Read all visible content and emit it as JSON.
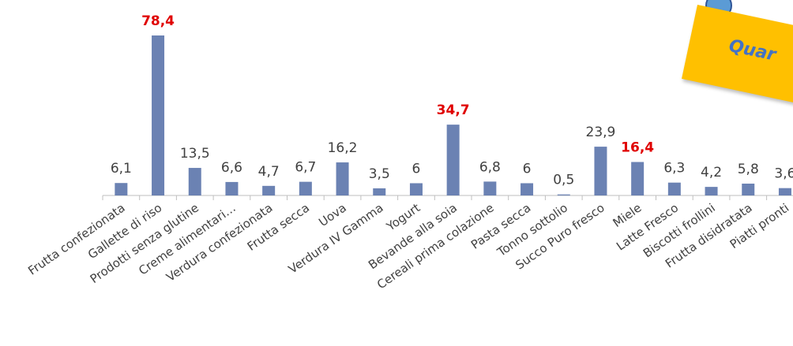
{
  "chart_data": {
    "type": "bar",
    "categories": [
      "Frutta confezionata",
      "Gallette di riso",
      "Prodotti senza glutine",
      "Creme alimentari…",
      "Verdura confezionata",
      "Frutta secca",
      "Uova",
      "Verdura IV Gamma",
      "Yogurt",
      "Bevande alla soia",
      "Cereali prima colazione",
      "Pasta secca",
      "Tonno sottolio",
      "Succo Puro fresco",
      "Miele",
      "Latte Fresco",
      "Biscotti frollini",
      "Frutta disidratata",
      "Piatti pronti"
    ],
    "values": [
      6.1,
      78.4,
      13.5,
      6.6,
      4.7,
      6.7,
      16.2,
      3.5,
      6,
      34.7,
      6.8,
      6,
      0.5,
      23.9,
      16.4,
      6.3,
      4.2,
      5.8,
      3.6
    ],
    "value_labels": [
      "6,1",
      "78,4",
      "13,5",
      "6,6",
      "4,7",
      "6,7",
      "16,2",
      "3,5",
      "6",
      "34,7",
      "6,8",
      "6",
      "0,5",
      "23,9",
      "16,4",
      "6,3",
      "4,2",
      "5,8",
      "3,6"
    ],
    "highlighted": [
      "Gallette di riso",
      "Bevande alla soia",
      "Miele"
    ],
    "ylim": [
      0,
      80
    ],
    "grid": false,
    "colors": {
      "bar": "#6b82b3",
      "highlight_label": "#e00000",
      "label": "#404040"
    }
  },
  "callout": {
    "text": "Quar",
    "color": "#ffc000",
    "text_color": "#4472c4"
  }
}
